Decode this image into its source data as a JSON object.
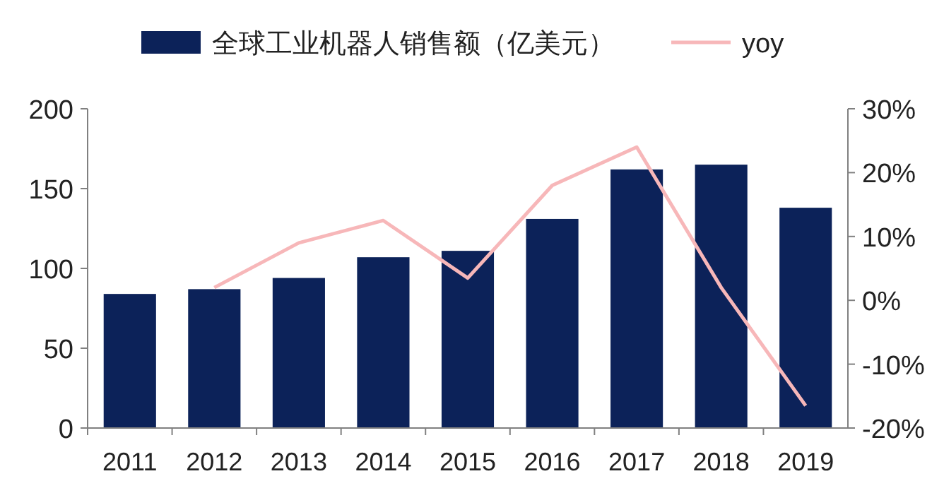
{
  "chart_data": {
    "type": "bar",
    "categories": [
      "2011",
      "2012",
      "2013",
      "2014",
      "2015",
      "2016",
      "2017",
      "2018",
      "2019"
    ],
    "series": [
      {
        "name": "全球工业机器人销售额（亿美元）",
        "color": "#0c2259",
        "values": [
          84,
          87,
          94,
          107,
          111,
          131,
          162,
          165,
          138
        ]
      },
      {
        "name": "yoy",
        "type": "line",
        "axis": "y2",
        "color": "#f7b7b9",
        "values": [
          null,
          2,
          9,
          12.5,
          3.5,
          18,
          24,
          2,
          -16.5
        ]
      }
    ],
    "ylim": [
      0,
      200
    ],
    "yticks": [
      0,
      50,
      100,
      150,
      200
    ],
    "y2lim": [
      -20,
      30
    ],
    "y2ticks": [
      {
        "value": -20,
        "label": "-20%"
      },
      {
        "value": -10,
        "label": "-10%"
      },
      {
        "value": 0,
        "label": "0%"
      },
      {
        "value": 10,
        "label": "10%"
      },
      {
        "value": 20,
        "label": "20%"
      },
      {
        "value": 30,
        "label": "30%"
      }
    ],
    "legend": "top",
    "grid": false
  }
}
